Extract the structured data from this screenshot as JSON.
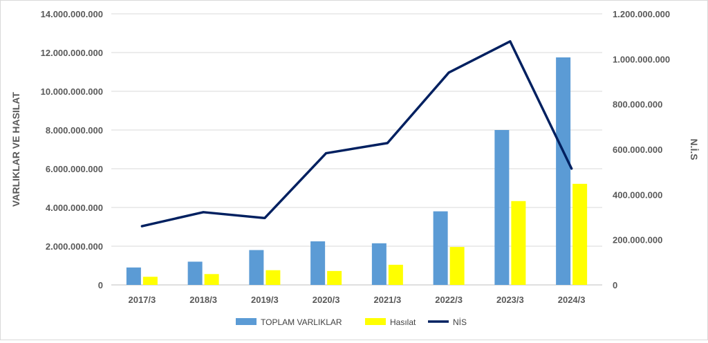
{
  "chart_data": {
    "type": "bar",
    "categories": [
      "2017/3",
      "2018/3",
      "2019/3",
      "2020/3",
      "2021/3",
      "2022/3",
      "2023/3",
      "2024/3"
    ],
    "series": [
      {
        "name": "TOPLAM VARLIKLAR",
        "type": "bar",
        "axis": "left",
        "color": "#5b9bd5",
        "values": [
          900000000,
          1200000000,
          1800000000,
          2250000000,
          2150000000,
          3800000000,
          8000000000,
          11750000000
        ]
      },
      {
        "name": "Hasılat",
        "type": "bar",
        "axis": "left",
        "color": "#ffff00",
        "values": [
          420000000,
          560000000,
          760000000,
          720000000,
          1040000000,
          1960000000,
          4330000000,
          5220000000
        ]
      },
      {
        "name": "NİS",
        "type": "line",
        "axis": "right",
        "color": "#002060",
        "values": [
          260000000,
          322000000,
          296000000,
          583000000,
          628000000,
          940000000,
          1078000000,
          515000000
        ]
      }
    ],
    "ylabel_left": "VARLIKLAR VE HASILAT",
    "ylabel_right": "N.İ.S",
    "ylim_left": [
      0,
      14000000000
    ],
    "ylim_right": [
      0,
      1200000000
    ],
    "yticks_left": [
      "0",
      "2.000.000.000",
      "4.000.000.000",
      "6.000.000.000",
      "8.000.000.000",
      "10.000.000.000",
      "12.000.000.000",
      "14.000.000.000"
    ],
    "yticks_right": [
      "0",
      "200.000.000",
      "400.000.000",
      "600.000.000",
      "800.000.000",
      "1.000.000.000",
      "1.200.000.000"
    ],
    "grid": "horizontal",
    "legend_position": "bottom"
  }
}
